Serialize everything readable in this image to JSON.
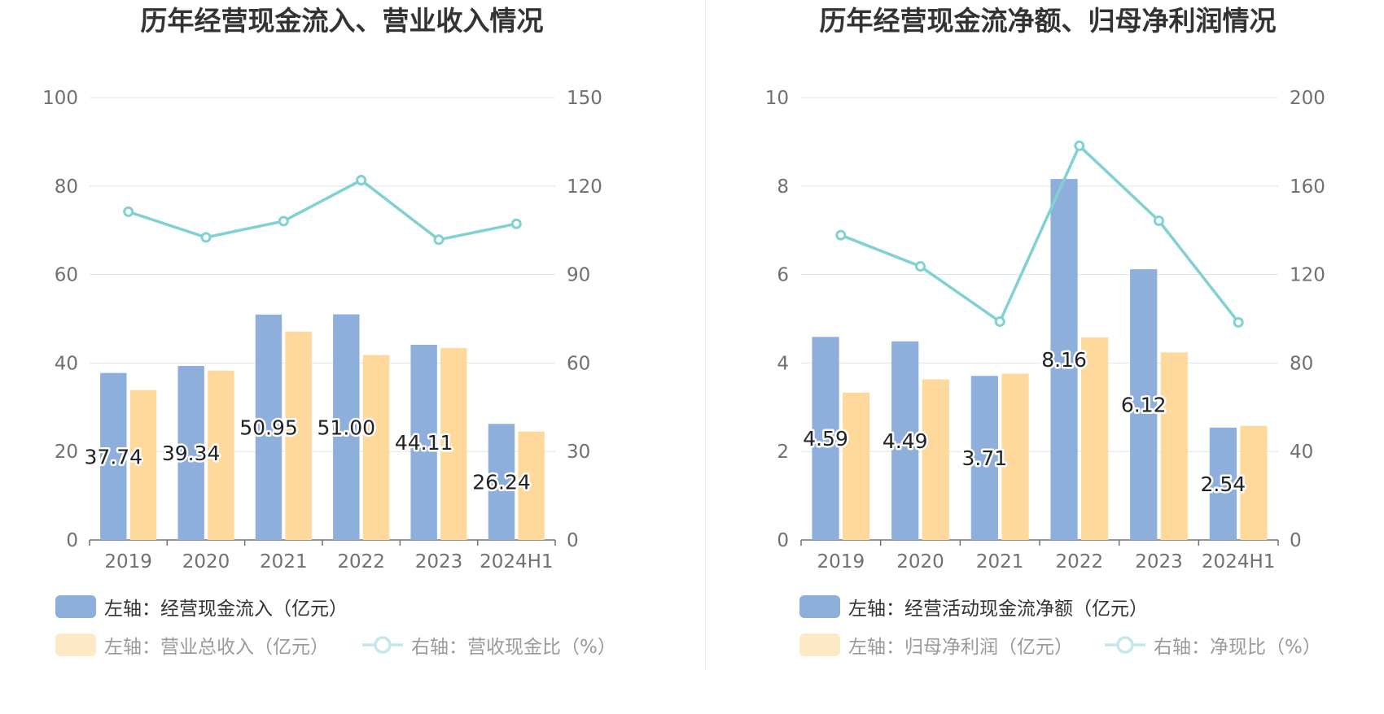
{
  "colors": {
    "bar_left": "#8eaedc",
    "bar_right": "#ffd99b",
    "legend_right_inactive": "#fde9c6",
    "line": "#7fd1d3",
    "line_inactive": "#c4e8ea",
    "axis_text": "#707070",
    "grid": "#dfe3ef",
    "title": "#333333"
  },
  "chart_data": [
    {
      "type": "bar+line",
      "title": "历年经营现金流入、营业收入情况",
      "categories": [
        "2019",
        "2020",
        "2021",
        "2022",
        "2023",
        "2024H1"
      ],
      "y_left": {
        "min": 0,
        "max": 100,
        "ticks": [
          "0",
          "20",
          "40",
          "60",
          "80",
          "100"
        ]
      },
      "y_right": {
        "min": 0,
        "max": 150,
        "ticks": [
          "0",
          "30",
          "60",
          "90",
          "120",
          "150"
        ]
      },
      "series": [
        {
          "name": "左轴：经营现金流入（亿元）",
          "type": "bar",
          "axis": "left",
          "values": [
            37.74,
            39.34,
            50.95,
            51.0,
            44.11,
            26.24
          ],
          "labels": [
            "37.74",
            "39.34",
            "50.95",
            "51.00",
            "44.11",
            "26.24"
          ]
        },
        {
          "name": "左轴：营业总收入（亿元）",
          "type": "bar",
          "axis": "left",
          "values": [
            33.9,
            38.3,
            47.1,
            41.8,
            43.4,
            24.5
          ]
        },
        {
          "name": "右轴：营收现金比（%）",
          "type": "line",
          "axis": "right",
          "values": [
            111.3,
            102.6,
            108.1,
            122.0,
            101.8,
            107.2
          ]
        }
      ]
    },
    {
      "type": "bar+line",
      "title": "历年经营现金流净额、归母净利润情况",
      "categories": [
        "2019",
        "2020",
        "2021",
        "2022",
        "2023",
        "2024H1"
      ],
      "y_left": {
        "min": 0,
        "max": 10,
        "ticks": [
          "0",
          "2",
          "4",
          "6",
          "8",
          "10"
        ]
      },
      "y_right": {
        "min": 0,
        "max": 200,
        "ticks": [
          "0",
          "40",
          "80",
          "120",
          "160",
          "200"
        ]
      },
      "series": [
        {
          "name": "左轴：经营活动现金流净额（亿元）",
          "type": "bar",
          "axis": "left",
          "values": [
            4.59,
            4.49,
            3.71,
            8.16,
            6.12,
            2.54
          ],
          "labels": [
            "4.59",
            "4.49",
            "3.71",
            "8.16",
            "6.12",
            "2.54"
          ]
        },
        {
          "name": "左轴：归母净利润（亿元）",
          "type": "bar",
          "axis": "left",
          "values": [
            3.33,
            3.63,
            3.76,
            4.58,
            4.24,
            2.58
          ]
        },
        {
          "name": "右轴：净现比（%）",
          "type": "line",
          "axis": "right",
          "values": [
            137.8,
            123.7,
            98.7,
            178.2,
            144.3,
            98.4
          ]
        }
      ]
    }
  ]
}
